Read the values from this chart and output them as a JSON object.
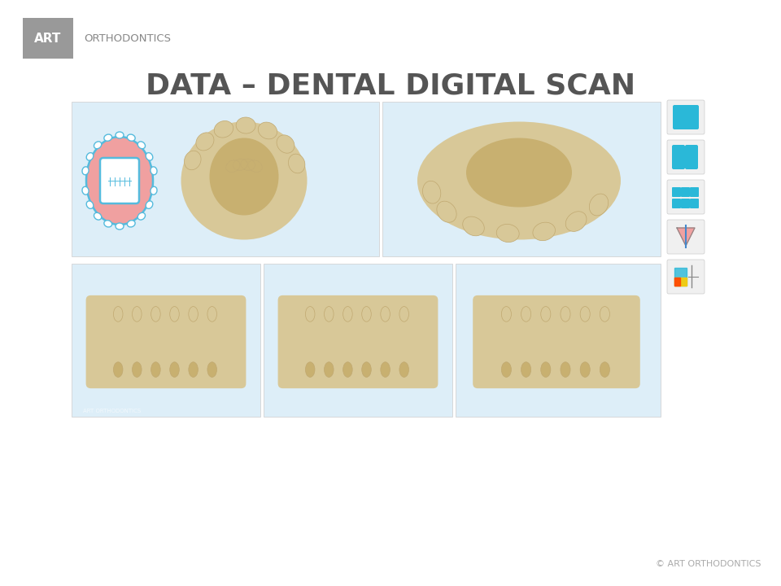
{
  "background_color": "#ffffff",
  "title": "DATA – DENTAL DIGITAL SCAN",
  "title_color": "#555555",
  "title_fontsize": 26,
  "title_fontweight": "bold",
  "logo_box_color": "#999999",
  "logo_text_art": "ART",
  "logo_text_ortho": "ORTHODONTICS",
  "logo_text_color": "#ffffff",
  "logo_ortho_color": "#888888",
  "footer_text": "© ART ORTHODONTICS",
  "footer_color": "#aaaaaa",
  "panel_bg": "#ddeef8",
  "panel_border": "#cccccc",
  "sidebar_button_color": "#2ab8d8",
  "sidebar_button_bg": "#f0f0f0",
  "bone_color": "#d8c898",
  "bone_dark": "#c0a870"
}
